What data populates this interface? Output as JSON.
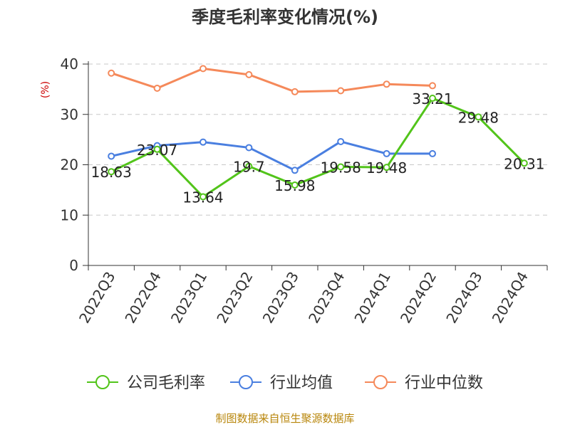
{
  "chart_data": {
    "type": "line",
    "title": "季度毛利率变化情况(%)",
    "ylabel": "(%)",
    "xlabel": "",
    "categories": [
      "2022Q3",
      "2022Q4",
      "2023Q1",
      "2023Q2",
      "2023Q3",
      "2023Q4",
      "2024Q1",
      "2024Q2",
      "2024Q3",
      "2024Q4"
    ],
    "ylim": [
      0,
      40
    ],
    "yticks": [
      0,
      10,
      20,
      30,
      40
    ],
    "grid": true,
    "legend_position": "bottom",
    "series": [
      {
        "name": "公司毛利率",
        "color": "#52c41a",
        "values": [
          18.63,
          23.07,
          13.64,
          19.7,
          15.98,
          19.58,
          19.48,
          33.21,
          29.48,
          20.31
        ],
        "labels": [
          "18.63",
          "23.07",
          "13.64",
          "19.7",
          "15.98",
          "19.58",
          "19.48",
          "33.21",
          "29.48",
          "20.31"
        ]
      },
      {
        "name": "行业均值",
        "color": "#4a7fe0",
        "values": [
          21.7,
          23.8,
          24.5,
          23.4,
          18.9,
          24.6,
          22.2,
          22.2,
          null,
          null
        ]
      },
      {
        "name": "行业中位数",
        "color": "#f5895a",
        "values": [
          38.2,
          35.2,
          39.1,
          37.9,
          34.5,
          34.7,
          36.0,
          35.7,
          null,
          null
        ]
      }
    ]
  },
  "source_text": "制图数据来自恒生聚源数据库"
}
